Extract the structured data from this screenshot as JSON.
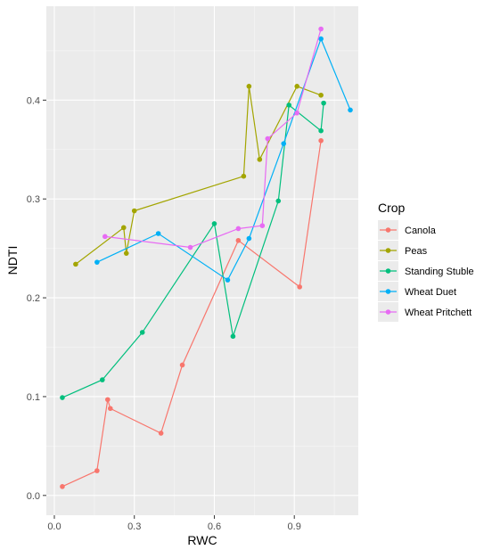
{
  "chart_data": {
    "type": "line",
    "title": "",
    "xlabel": "RWC",
    "ylabel": "NDTI",
    "xlim": [
      -0.03,
      1.14
    ],
    "ylim": [
      -0.02,
      0.495
    ],
    "x_ticks": [
      0.0,
      0.3,
      0.6,
      0.9
    ],
    "x_tick_labels": [
      "0.0",
      "0.3",
      "0.6",
      "0.9"
    ],
    "y_ticks": [
      0.0,
      0.1,
      0.2,
      0.3,
      0.4
    ],
    "y_tick_labels": [
      "0.0",
      "0.1",
      "0.2",
      "0.3",
      "0.4"
    ],
    "grid": true,
    "legend_title": "Crop",
    "legend_position": "right",
    "series": [
      {
        "name": "Canola",
        "color": "#F8766D",
        "x": [
          0.03,
          0.16,
          0.2,
          0.21,
          0.4,
          0.48,
          0.69,
          0.92,
          1.0
        ],
        "y": [
          0.009,
          0.025,
          0.097,
          0.088,
          0.063,
          0.132,
          0.258,
          0.211,
          0.359
        ]
      },
      {
        "name": "Peas",
        "color": "#A3A500",
        "x": [
          0.08,
          0.26,
          0.27,
          0.3,
          0.71,
          0.73,
          0.77,
          0.91,
          1.0
        ],
        "y": [
          0.234,
          0.271,
          0.245,
          0.288,
          0.323,
          0.414,
          0.34,
          0.414,
          0.405
        ]
      },
      {
        "name": "Standing Stuble",
        "color": "#00BF7D",
        "x": [
          0.03,
          0.18,
          0.33,
          0.6,
          0.67,
          0.84,
          0.88,
          1.0,
          1.01
        ],
        "y": [
          0.099,
          0.117,
          0.165,
          0.275,
          0.161,
          0.298,
          0.395,
          0.369,
          0.397
        ]
      },
      {
        "name": "Wheat Duet",
        "color": "#00B0F6",
        "x": [
          0.16,
          0.39,
          0.65,
          0.73,
          0.86,
          1.0,
          1.11
        ],
        "y": [
          0.236,
          0.265,
          0.218,
          0.26,
          0.356,
          0.462,
          0.39
        ]
      },
      {
        "name": "Wheat Pritchett",
        "color": "#E76BF3",
        "x": [
          0.19,
          0.51,
          0.69,
          0.78,
          0.8,
          0.91,
          1.0
        ],
        "y": [
          0.262,
          0.251,
          0.27,
          0.273,
          0.361,
          0.387,
          0.472
        ]
      }
    ]
  }
}
